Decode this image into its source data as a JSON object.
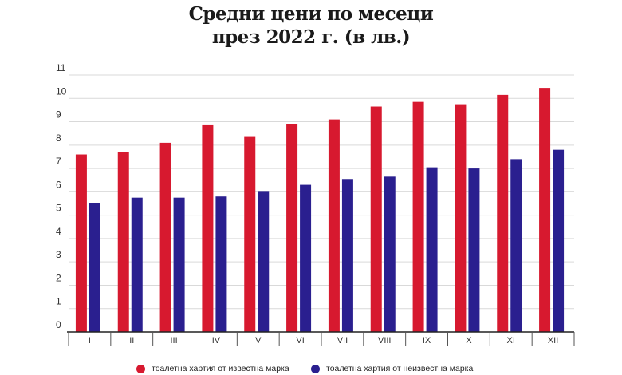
{
  "title": {
    "line1": "Средни цени по месеци",
    "line2": "през 2022 г. (в лв.)"
  },
  "chart_data": {
    "type": "bar",
    "categories": [
      "I",
      "II",
      "III",
      "IV",
      "V",
      "VI",
      "VII",
      "VIII",
      "IX",
      "X",
      "XI",
      "XII"
    ],
    "series": [
      {
        "name": "тоалетна хартия от известна марка",
        "color": "#d7192f",
        "values": [
          7.6,
          7.7,
          8.1,
          8.85,
          8.35,
          8.9,
          9.1,
          9.65,
          9.85,
          9.75,
          10.15,
          10.45
        ]
      },
      {
        "name": "тоалетна хартия от неизвестна марка",
        "color": "#2a1f8f",
        "values": [
          5.5,
          5.75,
          5.75,
          5.8,
          6.0,
          6.3,
          6.55,
          6.65,
          7.05,
          7.0,
          7.4,
          7.8
        ]
      }
    ],
    "yticks": [
      "0",
      "1",
      "2",
      "3",
      "4",
      "5",
      "6",
      "7",
      "8",
      "9",
      "10",
      "11"
    ],
    "ylim": [
      0,
      11
    ],
    "grid": true,
    "legend": "bottom"
  }
}
